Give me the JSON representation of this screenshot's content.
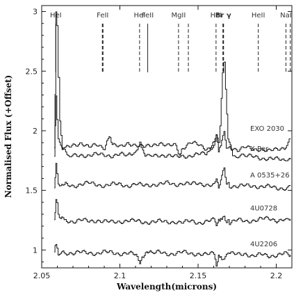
{
  "chart_data": {
    "type": "line",
    "xlabel": "Wavelength(microns)",
    "ylabel": "Normalised Flux (+Offset)",
    "xlim": [
      2.05,
      2.21
    ],
    "ylim": [
      0.85,
      3.05
    ],
    "x_ticks": [
      {
        "value": 2.05,
        "label": "2.05"
      },
      {
        "value": 2.1,
        "label": "2.1"
      },
      {
        "value": 2.15,
        "label": "2.15"
      },
      {
        "value": 2.2,
        "label": "2.2"
      }
    ],
    "y_ticks": [
      {
        "value": 1.0,
        "label": "1"
      },
      {
        "value": 1.5,
        "label": "1.5"
      },
      {
        "value": 2.0,
        "label": "2"
      },
      {
        "value": 2.5,
        "label": "2.5"
      },
      {
        "value": 3.0,
        "label": "3"
      }
    ],
    "line_marks": [
      {
        "label": "HeI",
        "x": 2.059,
        "style": "solid"
      },
      {
        "label": "FeII",
        "x": 2.089,
        "style": "bold-dash"
      },
      {
        "label": "HeI",
        "x": 2.1126,
        "style": "dash"
      },
      {
        "label": "FeII",
        "x": 2.1178,
        "style": "solid"
      },
      {
        "label": "MgII",
        "x": 2.1375,
        "style": "dash"
      },
      {
        "label": "",
        "x": 2.1438,
        "style": "dash"
      },
      {
        "label": "HeI",
        "x": 2.1615,
        "style": "dash"
      },
      {
        "label": "Br γ",
        "x": 2.1661,
        "style": "bold-dash"
      },
      {
        "label": "HeII",
        "x": 2.1885,
        "style": "dash"
      },
      {
        "label": "NaI",
        "x": 2.2062,
        "style": "dash"
      },
      {
        "label": "",
        "x": 2.209,
        "style": "dash"
      }
    ],
    "series": [
      {
        "name": "X Per",
        "x": [
          2.058,
          2.0585,
          2.059,
          2.0597,
          2.0605,
          2.0615,
          2.063,
          2.066,
          2.07,
          2.075,
          2.08,
          2.085,
          2.09,
          2.095,
          2.1,
          2.105,
          2.108,
          2.11,
          2.1126,
          2.1145,
          2.116,
          2.12,
          2.125,
          2.13,
          2.135,
          2.14,
          2.145,
          2.15,
          2.155,
          2.158,
          2.16,
          2.1615,
          2.163,
          2.164,
          2.1655,
          2.1665,
          2.1675,
          2.169,
          2.172,
          2.176,
          2.18,
          2.185,
          2.19,
          2.195,
          2.2,
          2.205,
          2.209
        ],
        "y": [
          1.79,
          2.3,
          2.98,
          2.88,
          2.45,
          2.08,
          1.85,
          1.8,
          1.79,
          1.8,
          1.79,
          1.8,
          1.8,
          1.79,
          1.8,
          1.79,
          1.8,
          1.83,
          1.89,
          1.84,
          1.8,
          1.79,
          1.8,
          1.79,
          1.78,
          1.79,
          1.79,
          1.8,
          1.81,
          1.85,
          1.92,
          1.95,
          1.9,
          2.05,
          2.5,
          2.57,
          2.35,
          1.95,
          1.79,
          1.78,
          1.79,
          1.78,
          1.77,
          1.77,
          1.76,
          1.75,
          1.76
        ]
      },
      {
        "name": "EXO 2030",
        "x": [
          2.058,
          2.0585,
          2.059,
          2.0597,
          2.0605,
          2.062,
          2.065,
          2.07,
          2.075,
          2.08,
          2.085,
          2.09,
          2.093,
          2.095,
          2.1,
          2.105,
          2.11,
          2.115,
          2.12,
          2.125,
          2.13,
          2.135,
          2.138,
          2.14,
          2.145,
          2.15,
          2.155,
          2.16,
          2.1615,
          2.163,
          2.165,
          2.1665,
          2.168,
          2.17,
          2.175,
          2.18,
          2.185,
          2.19,
          2.195,
          2.2,
          2.205,
          2.209
        ],
        "y": [
          1.86,
          2.05,
          2.28,
          2.1,
          1.95,
          1.88,
          1.85,
          1.88,
          1.9,
          1.86,
          1.88,
          1.86,
          1.95,
          1.88,
          1.86,
          1.9,
          1.88,
          1.86,
          1.88,
          1.9,
          1.87,
          1.88,
          1.8,
          1.86,
          1.9,
          1.88,
          1.85,
          1.87,
          1.95,
          1.82,
          1.9,
          2.0,
          1.85,
          1.87,
          1.84,
          1.86,
          1.84,
          1.85,
          1.83,
          1.84,
          1.86,
          1.93
        ]
      },
      {
        "name": "A 0535+26",
        "x": [
          2.058,
          2.0585,
          2.059,
          2.0597,
          2.0605,
          2.062,
          2.065,
          2.07,
          2.075,
          2.08,
          2.085,
          2.09,
          2.095,
          2.1,
          2.105,
          2.11,
          2.115,
          2.12,
          2.125,
          2.13,
          2.135,
          2.14,
          2.145,
          2.15,
          2.155,
          2.16,
          2.1615,
          2.163,
          2.165,
          2.1665,
          2.168,
          2.17,
          2.175,
          2.18,
          2.185,
          2.19,
          2.195,
          2.2,
          2.205,
          2.209
        ],
        "y": [
          1.52,
          1.62,
          1.73,
          1.65,
          1.57,
          1.54,
          1.55,
          1.54,
          1.55,
          1.56,
          1.55,
          1.54,
          1.55,
          1.55,
          1.54,
          1.55,
          1.54,
          1.55,
          1.55,
          1.56,
          1.55,
          1.56,
          1.55,
          1.56,
          1.55,
          1.54,
          1.6,
          1.52,
          1.62,
          1.7,
          1.56,
          1.54,
          1.53,
          1.54,
          1.54,
          1.53,
          1.53,
          1.52,
          1.52,
          1.54
        ]
      },
      {
        "name": "4U0728",
        "x": [
          2.058,
          2.0585,
          2.059,
          2.0597,
          2.0605,
          2.062,
          2.065,
          2.07,
          2.075,
          2.08,
          2.085,
          2.09,
          2.095,
          2.1,
          2.105,
          2.11,
          2.115,
          2.12,
          2.125,
          2.13,
          2.135,
          2.14,
          2.145,
          2.15,
          2.155,
          2.16,
          2.1615,
          2.163,
          2.165,
          2.1665,
          2.168,
          2.17,
          2.175,
          2.18,
          2.185,
          2.19,
          2.195,
          2.2,
          2.205,
          2.209
        ],
        "y": [
          1.25,
          1.32,
          1.44,
          1.4,
          1.3,
          1.26,
          1.25,
          1.24,
          1.25,
          1.24,
          1.25,
          1.24,
          1.23,
          1.24,
          1.25,
          1.24,
          1.23,
          1.24,
          1.24,
          1.23,
          1.24,
          1.23,
          1.24,
          1.23,
          1.24,
          1.25,
          1.22,
          1.26,
          1.27,
          1.29,
          1.24,
          1.23,
          1.25,
          1.24,
          1.25,
          1.26,
          1.26,
          1.25,
          1.26,
          1.26
        ]
      },
      {
        "name": "4U2206",
        "x": [
          2.058,
          2.0585,
          2.059,
          2.0597,
          2.0605,
          2.062,
          2.065,
          2.07,
          2.075,
          2.08,
          2.085,
          2.09,
          2.095,
          2.1,
          2.105,
          2.11,
          2.1126,
          2.114,
          2.117,
          2.12,
          2.125,
          2.13,
          2.135,
          2.14,
          2.145,
          2.15,
          2.155,
          2.16,
          2.1615,
          2.163,
          2.165,
          2.1665,
          2.168,
          2.17,
          2.175,
          2.18,
          2.185,
          2.19,
          2.195,
          2.2,
          2.205,
          2.209
        ],
        "y": [
          0.98,
          1.03,
          1.06,
          1.01,
          0.94,
          0.97,
          0.98,
          0.97,
          0.98,
          0.98,
          0.97,
          0.98,
          0.98,
          0.97,
          0.97,
          0.96,
          0.9,
          0.95,
          0.98,
          0.97,
          0.98,
          0.97,
          0.97,
          0.98,
          0.97,
          0.97,
          0.96,
          0.97,
          0.88,
          0.96,
          0.94,
          0.92,
          0.97,
          0.97,
          0.96,
          0.97,
          0.95,
          0.96,
          0.95,
          0.96,
          0.97,
          0.96
        ]
      }
    ]
  }
}
